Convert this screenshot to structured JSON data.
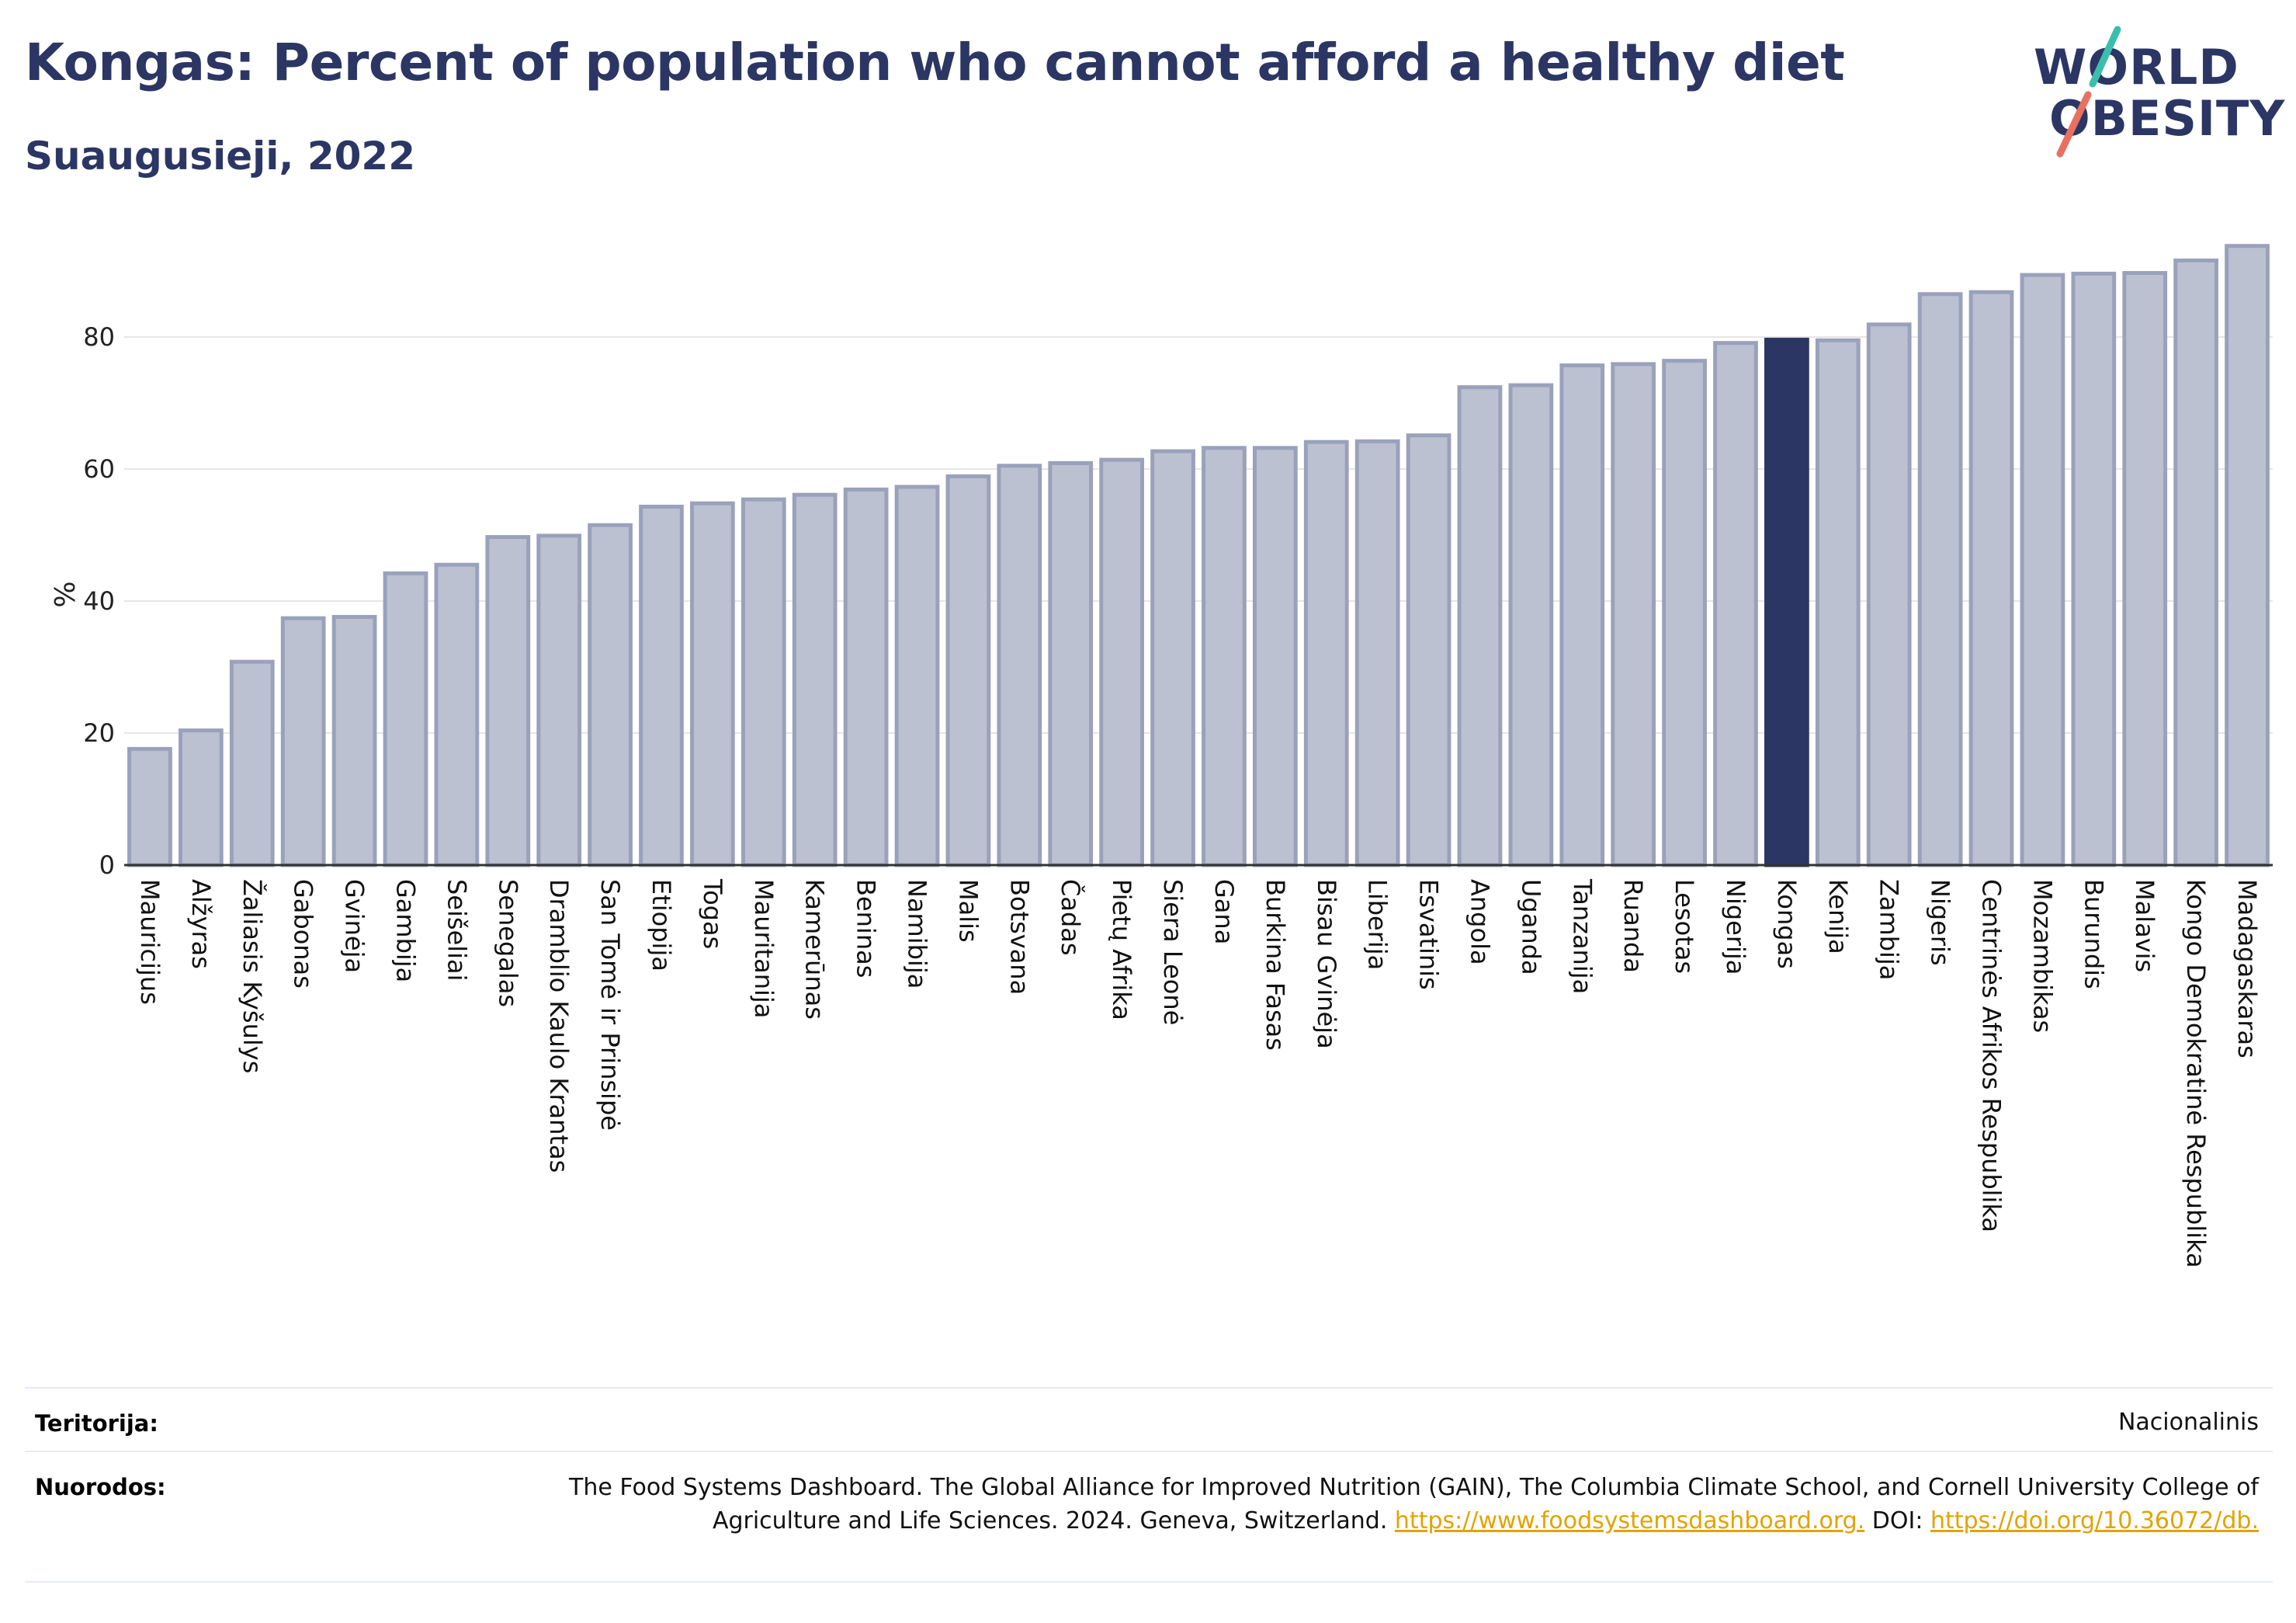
{
  "title": "Kongas: Percent of population who cannot afford a healthy diet",
  "subtitle": "Suaugusieji, 2022",
  "logo": {
    "line1": "WORLD",
    "line2": "OBESITY"
  },
  "colors": {
    "bar": "#bcc1d1",
    "bar_border": "#9aa1ba",
    "highlight": "#2b3664",
    "title": "#2b3664",
    "link": "#e2a300"
  },
  "chart_data": {
    "type": "bar",
    "title": "Kongas: Percent of population who cannot afford a healthy diet",
    "subtitle": "Suaugusieji, 2022",
    "xlabel": "",
    "ylabel": "%",
    "ylim": [
      0,
      95
    ],
    "yticks": [
      0,
      20,
      40,
      60,
      80
    ],
    "grid": true,
    "highlight": "Kongas",
    "categories": [
      "Mauricijus",
      "Alžyras",
      "Žaliasis Kyšulys",
      "Gabonas",
      "Gvinėja",
      "Gambija",
      "Seišeliai",
      "Senegalas",
      "Dramblio Kaulo Krantas",
      "San Tomė ir Prinsipė",
      "Etiopija",
      "Togas",
      "Mauritanija",
      "Kamerūnas",
      "Beninas",
      "Namibija",
      "Malis",
      "Botsvana",
      "Čadas",
      "Pietų Afrika",
      "Siera Leonė",
      "Gana",
      "Burkina Fasas",
      "Bisau Gvinėja",
      "Liberija",
      "Esvatinis",
      "Angola",
      "Uganda",
      "Tanzanija",
      "Ruanda",
      "Lesotas",
      "Nigerija",
      "Kongas",
      "Kenija",
      "Zambija",
      "Nigeris",
      "Centrinės Afrikos Respublika",
      "Mozambikas",
      "Burundis",
      "Malavis",
      "Kongo Demokratinė Respublika",
      "Madagaskaras"
    ],
    "values": [
      17.6,
      20.4,
      30.8,
      37.4,
      37.6,
      44.2,
      45.5,
      49.7,
      49.9,
      51.5,
      54.3,
      54.8,
      55.4,
      56.1,
      56.9,
      57.3,
      58.9,
      60.5,
      60.9,
      61.4,
      62.7,
      63.2,
      63.2,
      64.1,
      64.2,
      65.1,
      72.4,
      72.7,
      75.7,
      75.9,
      76.4,
      79.1,
      79.6,
      79.5,
      81.9,
      86.5,
      86.8,
      89.4,
      89.6,
      89.7,
      91.6,
      93.8
    ]
  },
  "footer": {
    "territory_label": "Teritorija:",
    "territory_value": "Nacionalinis",
    "refs_label": "Nuorodos:",
    "refs_text": "The Food Systems Dashboard. The Global Alliance for Improved Nutrition (GAIN), The Columbia Climate School, and Cornell University College of Agriculture and Life Sciences. 2024. Geneva, Switzerland.",
    "refs_link1": "https://www.foodsystemsdashboard.org.",
    "refs_doi_label": "DOI:",
    "refs_link2": "https://doi.org/10.36072/db."
  }
}
